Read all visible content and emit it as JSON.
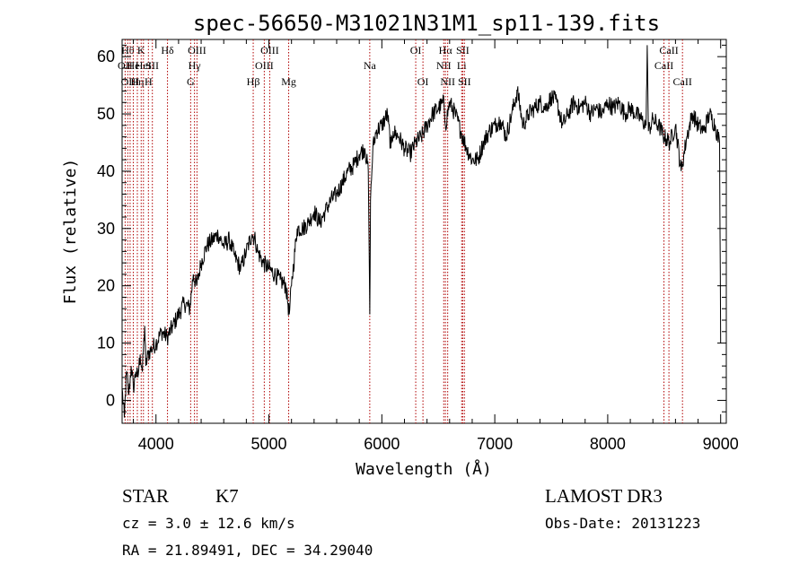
{
  "chart_data": {
    "type": "line",
    "title": "spec-56650-M31021N31M1_sp11-139.fits",
    "xlabel": "Wavelength (Å)",
    "ylabel": "Flux (relative)",
    "xlim": [
      3700,
      9050
    ],
    "ylim": [
      -4,
      63
    ],
    "x_ticks": [
      4000,
      5000,
      6000,
      7000,
      8000,
      9000
    ],
    "y_ticks": [
      0,
      10,
      20,
      30,
      40,
      50,
      60
    ],
    "x_tick_labels": [
      "4000",
      "5000",
      "6000",
      "7000",
      "8000",
      "9000"
    ],
    "y_tick_labels": [
      "0",
      "10",
      "20",
      "30",
      "40",
      "50",
      "60"
    ],
    "series": [
      {
        "name": "flux",
        "points": [
          [
            3700,
            2
          ],
          [
            3720,
            -3
          ],
          [
            3740,
            5
          ],
          [
            3760,
            1
          ],
          [
            3780,
            6
          ],
          [
            3800,
            2
          ],
          [
            3820,
            5
          ],
          [
            3840,
            4
          ],
          [
            3860,
            8
          ],
          [
            3880,
            5
          ],
          [
            3900,
            13
          ],
          [
            3910,
            6
          ],
          [
            3930,
            8
          ],
          [
            3960,
            9
          ],
          [
            4000,
            10
          ],
          [
            4050,
            12
          ],
          [
            4100,
            11
          ],
          [
            4150,
            13
          ],
          [
            4200,
            15
          ],
          [
            4250,
            17
          ],
          [
            4300,
            16
          ],
          [
            4330,
            22
          ],
          [
            4360,
            20
          ],
          [
            4400,
            24
          ],
          [
            4450,
            27
          ],
          [
            4500,
            28
          ],
          [
            4550,
            29
          ],
          [
            4600,
            27
          ],
          [
            4650,
            28
          ],
          [
            4700,
            25
          ],
          [
            4750,
            23
          ],
          [
            4800,
            26
          ],
          [
            4850,
            29
          ],
          [
            4880,
            28
          ],
          [
            4900,
            26
          ],
          [
            4950,
            24
          ],
          [
            5000,
            23
          ],
          [
            5050,
            22
          ],
          [
            5100,
            21
          ],
          [
            5150,
            20
          ],
          [
            5180,
            15
          ],
          [
            5200,
            20
          ],
          [
            5250,
            30
          ],
          [
            5300,
            30
          ],
          [
            5350,
            31
          ],
          [
            5400,
            33
          ],
          [
            5450,
            31
          ],
          [
            5500,
            33
          ],
          [
            5550,
            35
          ],
          [
            5600,
            36
          ],
          [
            5650,
            38
          ],
          [
            5700,
            40
          ],
          [
            5750,
            41
          ],
          [
            5800,
            43
          ],
          [
            5850,
            44
          ],
          [
            5880,
            40
          ],
          [
            5893,
            15
          ],
          [
            5900,
            35
          ],
          [
            5920,
            44
          ],
          [
            5950,
            47
          ],
          [
            6000,
            48
          ],
          [
            6050,
            50
          ],
          [
            6080,
            44
          ],
          [
            6100,
            47
          ],
          [
            6150,
            46
          ],
          [
            6200,
            44
          ],
          [
            6250,
            43
          ],
          [
            6300,
            45
          ],
          [
            6350,
            46
          ],
          [
            6400,
            48
          ],
          [
            6450,
            50
          ],
          [
            6500,
            51
          ],
          [
            6550,
            52
          ],
          [
            6563,
            48
          ],
          [
            6600,
            52
          ],
          [
            6650,
            50
          ],
          [
            6700,
            47
          ],
          [
            6750,
            44
          ],
          [
            6800,
            42
          ],
          [
            6850,
            42
          ],
          [
            6900,
            45
          ],
          [
            6950,
            47
          ],
          [
            7000,
            48
          ],
          [
            7050,
            49
          ],
          [
            7100,
            46
          ],
          [
            7150,
            50
          ],
          [
            7200,
            54
          ],
          [
            7250,
            48
          ],
          [
            7300,
            50
          ],
          [
            7350,
            51
          ],
          [
            7400,
            52
          ],
          [
            7450,
            51
          ],
          [
            7500,
            53
          ],
          [
            7550,
            52
          ],
          [
            7600,
            48
          ],
          [
            7650,
            50
          ],
          [
            7700,
            52
          ],
          [
            7750,
            51
          ],
          [
            7800,
            52
          ],
          [
            7850,
            50
          ],
          [
            7900,
            51
          ],
          [
            7950,
            50
          ],
          [
            8000,
            52
          ],
          [
            8050,
            51
          ],
          [
            8100,
            52
          ],
          [
            8150,
            50
          ],
          [
            8200,
            51
          ],
          [
            8250,
            50
          ],
          [
            8300,
            49
          ],
          [
            8340,
            48
          ],
          [
            8350,
            62
          ],
          [
            8360,
            47
          ],
          [
            8400,
            49
          ],
          [
            8450,
            48
          ],
          [
            8500,
            46
          ],
          [
            8550,
            45
          ],
          [
            8600,
            48
          ],
          [
            8650,
            40
          ],
          [
            8700,
            46
          ],
          [
            8750,
            50
          ],
          [
            8800,
            48
          ],
          [
            8850,
            47
          ],
          [
            8900,
            50
          ],
          [
            8950,
            48
          ],
          [
            8990,
            45
          ],
          [
            9000,
            10
          ]
        ]
      }
    ],
    "line_markers": [
      {
        "wave": 3727,
        "label": "OII",
        "row": 1
      },
      {
        "wave": 3750,
        "label": "Hθ",
        "row": 0
      },
      {
        "wave": 3771,
        "label": "OIII",
        "row": 2
      },
      {
        "wave": 3799,
        "label": "He",
        "row": 1
      },
      {
        "wave": 3835,
        "label": "Hη",
        "row": 2
      },
      {
        "wave": 3869,
        "label": "K",
        "row": 0
      },
      {
        "wave": 3889,
        "label": "HeI",
        "row": 1
      },
      {
        "wave": 3933,
        "label": "H",
        "row": 2
      },
      {
        "wave": 3968,
        "label": "SII",
        "row": 1
      },
      {
        "wave": 4102,
        "label": "Hδ",
        "row": 0
      },
      {
        "wave": 4307,
        "label": "G",
        "row": 2
      },
      {
        "wave": 4341,
        "label": "Hγ",
        "row": 1
      },
      {
        "wave": 4363,
        "label": "OIII",
        "row": 0
      },
      {
        "wave": 4861,
        "label": "Hβ",
        "row": 2
      },
      {
        "wave": 4959,
        "label": "OIII",
        "row": 1
      },
      {
        "wave": 5007,
        "label": "OIII",
        "row": 0
      },
      {
        "wave": 5175,
        "label": "Mg",
        "row": 2
      },
      {
        "wave": 5893,
        "label": "Na",
        "row": 1
      },
      {
        "wave": 6300,
        "label": "OI",
        "row": 0
      },
      {
        "wave": 6364,
        "label": "OI",
        "row": 2
      },
      {
        "wave": 6548,
        "label": "NII",
        "row": 1
      },
      {
        "wave": 6563,
        "label": "Hα",
        "row": 0
      },
      {
        "wave": 6583,
        "label": "NII",
        "row": 2
      },
      {
        "wave": 6707,
        "label": "Li",
        "row": 1
      },
      {
        "wave": 6716,
        "label": "SII",
        "row": 0
      },
      {
        "wave": 6731,
        "label": "SII",
        "row": 2
      },
      {
        "wave": 8498,
        "label": "CaII",
        "row": 1
      },
      {
        "wave": 8542,
        "label": "CaII",
        "row": 0
      },
      {
        "wave": 8662,
        "label": "CaII",
        "row": 2
      }
    ]
  },
  "info": {
    "object_class": "STAR",
    "subclass": "K7",
    "survey": "LAMOST DR3",
    "redshift": "cz = 3.0 ± 12.6 km/s",
    "obs_date": "Obs-Date: 20131223",
    "coords": "RA =  21.89491, DEC =  34.29040"
  }
}
